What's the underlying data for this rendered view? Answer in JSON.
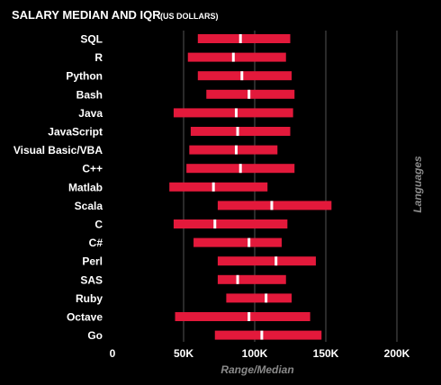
{
  "chart_data": {
    "type": "bar",
    "title": "SALARY MEDIAN AND IQR",
    "subtitle": "(US DOLLARS)",
    "xlabel": "Range/Median",
    "ylabel": "Languages",
    "xlim": [
      0,
      200000
    ],
    "x_ticks": [
      {
        "value": 0,
        "label": "0"
      },
      {
        "value": 50000,
        "label": "50K"
      },
      {
        "value": 100000,
        "label": "100K"
      },
      {
        "value": 150000,
        "label": "150K"
      },
      {
        "value": 200000,
        "label": "200K"
      }
    ],
    "grid": true,
    "colors": {
      "bar": "#e3193b",
      "median": "#ffffff",
      "grid": "#555555",
      "background": "#000000"
    },
    "categories": [
      "SQL",
      "R",
      "Python",
      "Bash",
      "Java",
      "JavaScript",
      "Visual Basic/VBA",
      "C++",
      "Matlab",
      "Scala",
      "C",
      "C#",
      "Perl",
      "SAS",
      "Ruby",
      "Octave",
      "Go"
    ],
    "series": [
      {
        "name": "Q1",
        "values": [
          60000,
          53000,
          60000,
          66000,
          43000,
          55000,
          54000,
          52000,
          40000,
          74000,
          43000,
          57000,
          74000,
          74000,
          80000,
          44000,
          72000
        ]
      },
      {
        "name": "Median",
        "values": [
          90000,
          85000,
          91000,
          96000,
          87000,
          88000,
          87000,
          90000,
          71000,
          112000,
          72000,
          96000,
          115000,
          88000,
          108000,
          96000,
          105000
        ]
      },
      {
        "name": "Q3",
        "values": [
          125000,
          122000,
          126000,
          128000,
          127000,
          125000,
          116000,
          128000,
          109000,
          154000,
          123000,
          119000,
          143000,
          122000,
          126000,
          139000,
          147000
        ]
      }
    ]
  }
}
